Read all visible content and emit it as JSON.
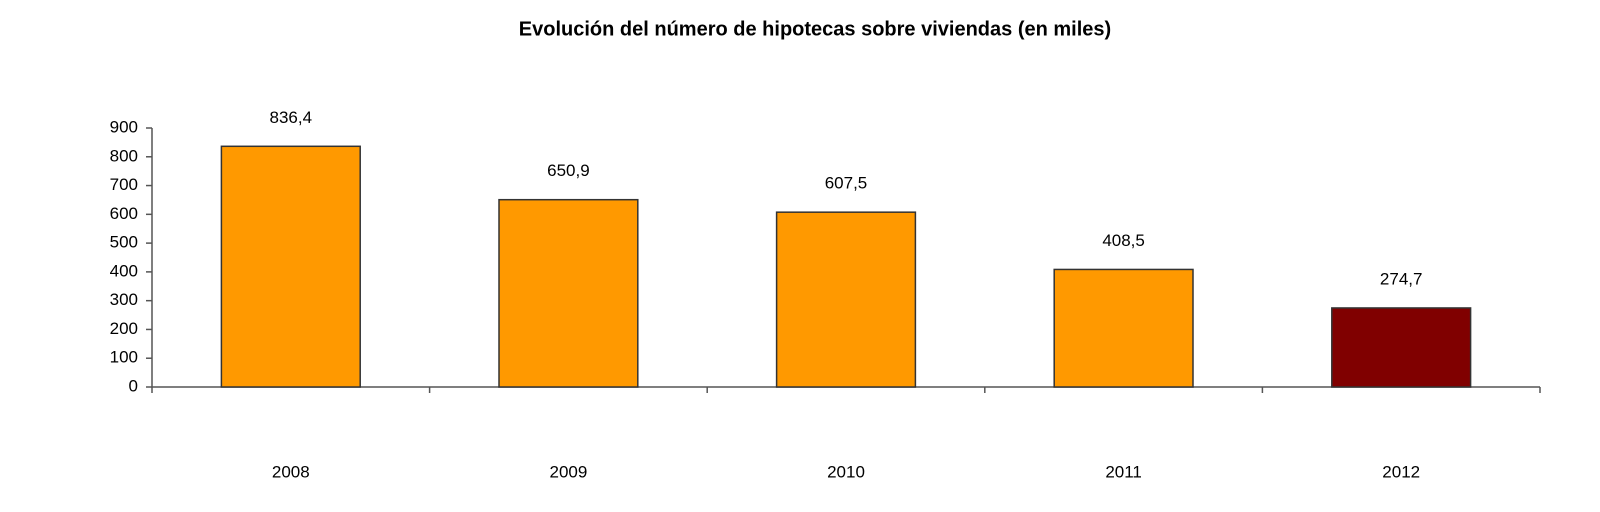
{
  "chart_data": {
    "type": "bar",
    "title": "Evolución  del número de hipotecas sobre viviendas  (en miles)",
    "categories": [
      "2008",
      "2009",
      "2010",
      "2011",
      "2012"
    ],
    "values": [
      836.4,
      650.9,
      607.5,
      408.5,
      274.7
    ],
    "value_labels": [
      "836,4",
      "650,9",
      "607,5",
      "408,5",
      "274,7"
    ],
    "colors": [
      "#ff9900",
      "#ff9900",
      "#ff9900",
      "#ff9900",
      "#800000"
    ],
    "ylim": [
      0,
      900
    ],
    "yticks": [
      0,
      100,
      200,
      300,
      400,
      500,
      600,
      700,
      800,
      900
    ],
    "grid": false
  }
}
